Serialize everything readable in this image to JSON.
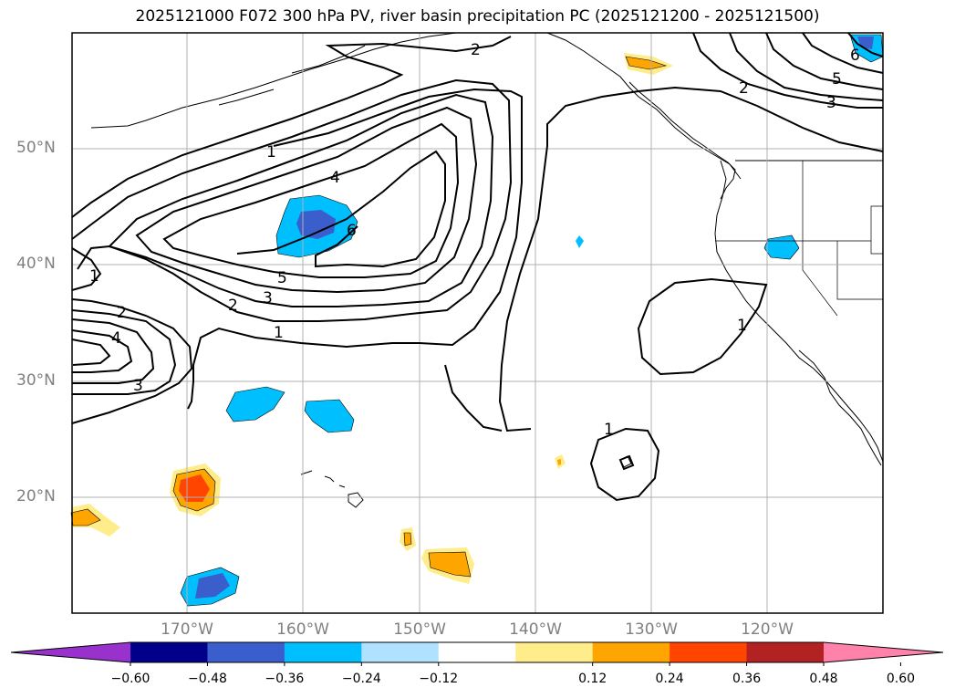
{
  "title": "2025121000 F072 300 hPa PV, river basin precipitation PC (2025121200 - 2025121500)",
  "lat_labels": [
    "50°N",
    "40°N",
    "30°N",
    "20°N"
  ],
  "lon_labels": [
    "170°W",
    "160°W",
    "150°W",
    "140°W",
    "130°W",
    "120°W"
  ],
  "colorbar": {
    "ticks": [
      "−0.60",
      "−0.48",
      "−0.36",
      "−0.24",
      "−0.12",
      "0.12",
      "0.24",
      "0.36",
      "0.48",
      "0.60"
    ],
    "colors": [
      "#9932cc",
      "#00008b",
      "#3a5fcd",
      "#00bfff",
      "#b0e2ff",
      "#ffffff",
      "#ffec8b",
      "#ffa500",
      "#ff4500",
      "#b22222",
      "#ff82ab"
    ]
  },
  "contour_labels": [
    "2",
    "1",
    "4",
    "5",
    "3",
    "2",
    "1",
    "6",
    "5",
    "3",
    "2",
    "1",
    "2",
    "4",
    "3",
    "1",
    "1",
    "6"
  ]
}
